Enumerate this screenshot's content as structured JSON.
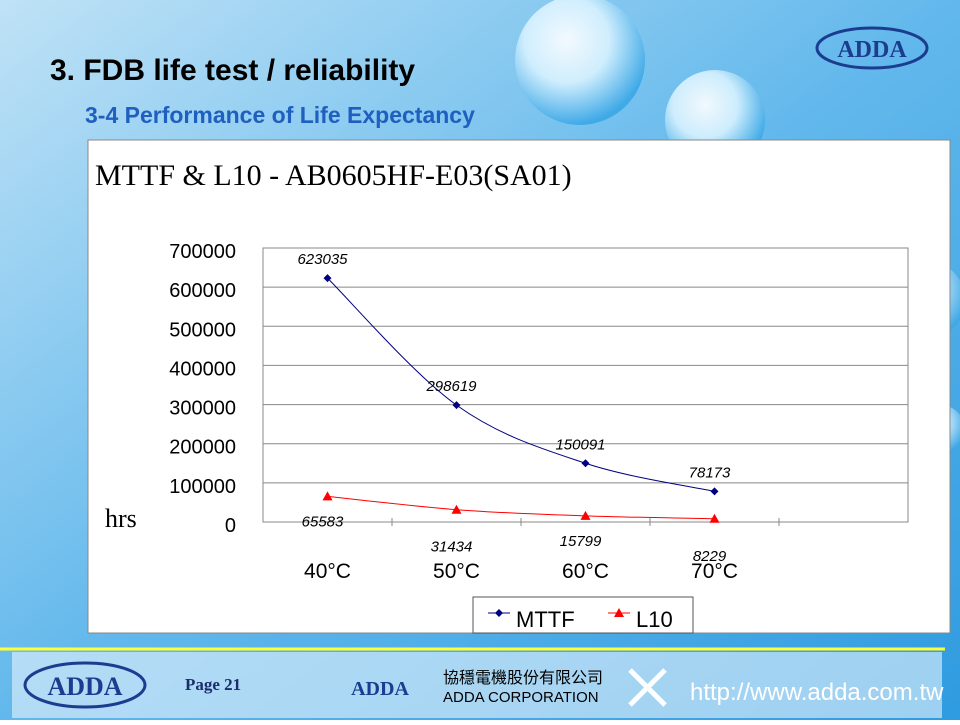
{
  "slide": {
    "title": "3. FDB life test / reliability",
    "subtitle": "3-4 Performance of Life Expectancy",
    "logo": "ADDA",
    "page": "Page 21",
    "footer_logo": "ADDA",
    "company_cn": "協穩電機股份有限公司",
    "company_en": "ADDA CORPORATION",
    "url": "http://www.adda.com.tw"
  },
  "chart_data": {
    "type": "line",
    "title": "MTTF & L10 - AB0605HF-E03(SA01)",
    "y_label": "hrs",
    "categories": [
      "40°C",
      "50°C",
      "60°C",
      "70°C",
      null
    ],
    "series": [
      {
        "name": "MTTF",
        "color": "#000080",
        "marker": "diamond",
        "values": [
          623035,
          298619,
          150091,
          78173,
          null
        ]
      },
      {
        "name": "L10",
        "color": "#ff0000",
        "marker": "triangle",
        "values": [
          65583,
          31434,
          15799,
          8229,
          null
        ]
      }
    ],
    "ylim": [
      0,
      700000
    ],
    "yticks": [
      0,
      100000,
      200000,
      300000,
      400000,
      500000,
      600000,
      700000
    ],
    "grid": true,
    "legend": "bottom"
  }
}
